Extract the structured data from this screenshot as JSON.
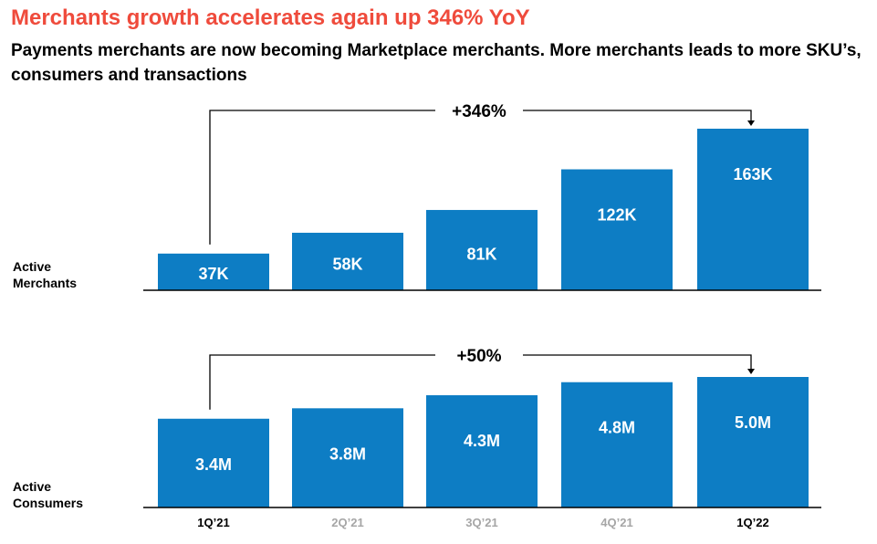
{
  "title": "Merchants growth accelerates again up 346% YoY",
  "subtitle": "Payments merchants are now becoming Marketplace merchants. More merchants leads to more SKU’s, consumers and transactions",
  "colors": {
    "title": "#ef4b3c",
    "bar": "#0d7dc4",
    "bar_label": "#ffffff",
    "tick_highlight": "#000000",
    "tick_muted": "#a6a6a6"
  },
  "chart_data": [
    {
      "type": "bar",
      "ylabel": "Active Merchants",
      "categories": [
        "1Q’21",
        "2Q’21",
        "3Q’21",
        "4Q’21",
        "1Q’22"
      ],
      "values": [
        37,
        58,
        81,
        122,
        163
      ],
      "labels": [
        "37K",
        "58K",
        "81K",
        "122K",
        "163K"
      ],
      "unit": "K",
      "annotation": "+346%"
    },
    {
      "type": "bar",
      "ylabel": "Active Consumers",
      "categories": [
        "1Q’21",
        "2Q’21",
        "3Q’21",
        "4Q’21",
        "1Q’22"
      ],
      "values": [
        3.4,
        3.8,
        4.3,
        4.8,
        5.0
      ],
      "labels": [
        "3.4M",
        "3.8M",
        "4.3M",
        "4.8M",
        "5.0M"
      ],
      "unit": "M",
      "annotation": "+50%"
    }
  ],
  "x_ticks": [
    {
      "label": "1Q’21",
      "highlight": true
    },
    {
      "label": "2Q’21",
      "highlight": false
    },
    {
      "label": "3Q’21",
      "highlight": false
    },
    {
      "label": "4Q’21",
      "highlight": false
    },
    {
      "label": "1Q’22",
      "highlight": true
    }
  ],
  "row_labels": {
    "merchants": [
      "Active",
      "Merchants"
    ],
    "consumers": [
      "Active",
      "Consumers"
    ]
  }
}
